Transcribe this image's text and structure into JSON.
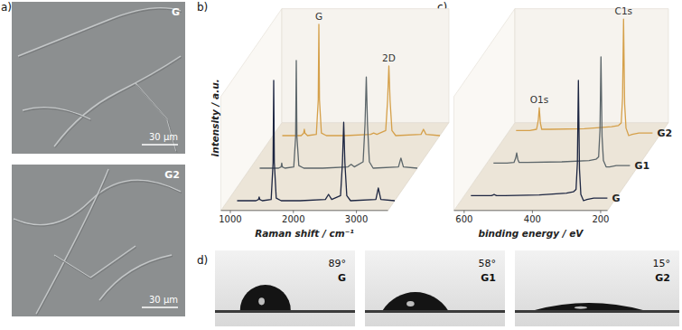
{
  "panel_labels": [
    "a)",
    "b)",
    "c)",
    "d)"
  ],
  "sem_images": [
    {
      "label": "G",
      "scale_bar": "30 μm"
    },
    {
      "label": "G2",
      "scale_bar": "30 μm"
    }
  ],
  "chart_data": [
    {
      "type": "line",
      "x_label": "Raman shift / cm⁻¹",
      "y_label": "intensity / a.u.",
      "x": [
        1000,
        1300,
        1340,
        1350,
        1360,
        1400,
        1540,
        1570,
        1580,
        1590,
        1620,
        1700,
        2000,
        2400,
        2450,
        2500,
        2640,
        2670,
        2690,
        2710,
        2740,
        2800,
        3200,
        3240,
        3280,
        3500
      ],
      "series": [
        {
          "color": "#1c2541",
          "values": [
            0,
            0,
            0.01,
            0.03,
            0.01,
            0,
            0.01,
            0.3,
            0.95,
            0.3,
            0.02,
            0,
            0,
            0.01,
            0.05,
            0.01,
            0.04,
            0.3,
            0.62,
            0.3,
            0.04,
            0,
            0.01,
            0.1,
            0.01,
            0
          ]
        },
        {
          "color": "#5c666a",
          "values": [
            0,
            0,
            0.01,
            0.04,
            0.01,
            0,
            0.01,
            0.25,
            0.85,
            0.25,
            0.02,
            0,
            0,
            0.01,
            0.03,
            0.01,
            0.05,
            0.35,
            0.72,
            0.35,
            0.05,
            0,
            0.01,
            0.08,
            0.01,
            0
          ]
        },
        {
          "color": "#d5a04a",
          "values": [
            0,
            0,
            0.02,
            0.05,
            0.02,
            0,
            0.01,
            0.28,
            0.88,
            0.28,
            0.02,
            0,
            0,
            0.01,
            0.02,
            0.01,
            0.04,
            0.28,
            0.55,
            0.28,
            0.04,
            0,
            0.01,
            0.05,
            0.01,
            0
          ]
        }
      ],
      "xlim": [
        850,
        3500
      ],
      "xticks": [
        1000,
        2000,
        3000
      ],
      "ylim": [
        0,
        1
      ],
      "tick_labels": "x",
      "annotations": [
        {
          "text": "G",
          "x": 1580
        },
        {
          "text": "2D",
          "x": 2690
        }
      ]
    },
    {
      "type": "line",
      "x_label": "binding energy / eV",
      "x": [
        600,
        560,
        540,
        535,
        532,
        529,
        525,
        500,
        400,
        320,
        300,
        292,
        288,
        285,
        282,
        278,
        270,
        260,
        240,
        200
      ],
      "series": [
        {
          "name": "G",
          "color": "#1c2541",
          "values": [
            0.04,
            0.04,
            0.04,
            0.045,
            0.05,
            0.045,
            0.04,
            0.04,
            0.045,
            0.06,
            0.07,
            0.09,
            0.3,
            0.95,
            0.25,
            0.05,
            0.0,
            0.01,
            0.02,
            0.02
          ]
        },
        {
          "name": "G1",
          "color": "#5c666a",
          "values": [
            0.04,
            0.04,
            0.045,
            0.08,
            0.12,
            0.07,
            0.045,
            0.045,
            0.05,
            0.06,
            0.07,
            0.09,
            0.3,
            0.88,
            0.25,
            0.06,
            0.01,
            0.01,
            0.02,
            0.02
          ]
        },
        {
          "name": "G2",
          "color": "#d5a04a",
          "values": [
            0.04,
            0.04,
            0.05,
            0.12,
            0.22,
            0.1,
            0.05,
            0.05,
            0.055,
            0.07,
            0.08,
            0.1,
            0.3,
            0.92,
            0.25,
            0.06,
            0,
            0.01,
            0.02,
            0.02
          ]
        }
      ],
      "xlim": [
        630,
        180
      ],
      "xticks": [
        600,
        400,
        200
      ],
      "ylim": [
        0,
        1
      ],
      "tick_labels": "x",
      "annotations": [
        {
          "text": "O1s",
          "x": 532
        },
        {
          "text": "C1s",
          "x": 285
        }
      ]
    }
  ],
  "contact_angles": [
    {
      "sample": "G",
      "angle": 89,
      "label": "89°"
    },
    {
      "sample": "G1",
      "angle": 58,
      "label": "58°"
    },
    {
      "sample": "G2",
      "angle": 15,
      "label": "15°"
    }
  ]
}
